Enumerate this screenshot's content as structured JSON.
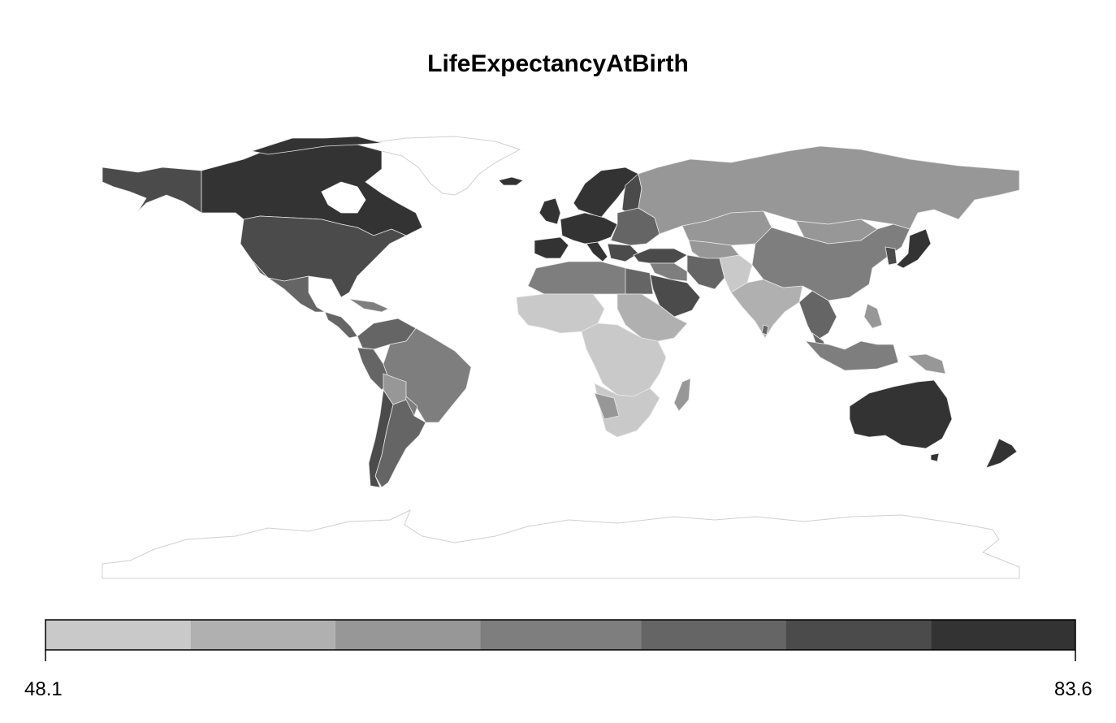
{
  "map": {
    "title": "LifeExpectancyAtBirth",
    "legend": {
      "min_label": "48.1",
      "max_label": "83.6",
      "bins": [
        {
          "color": "#c9c9c9",
          "from": 0.0,
          "to": 0.1409
        },
        {
          "color": "#b0b0b0",
          "from": 0.1409,
          "to": 0.2815
        },
        {
          "color": "#979797",
          "from": 0.2815,
          "to": 0.4223
        },
        {
          "color": "#7e7e7e",
          "from": 0.4223,
          "to": 0.5785
        },
        {
          "color": "#656565",
          "from": 0.5785,
          "to": 0.7189
        },
        {
          "color": "#4b4b4b",
          "from": 0.7189,
          "to": 0.8597
        },
        {
          "color": "#333333",
          "from": 0.8597,
          "to": 1.0
        }
      ]
    },
    "colors": {
      "border": "#e8e8e8",
      "no_data": "#ffffff",
      "frame": "#cfcfcf"
    }
  }
}
